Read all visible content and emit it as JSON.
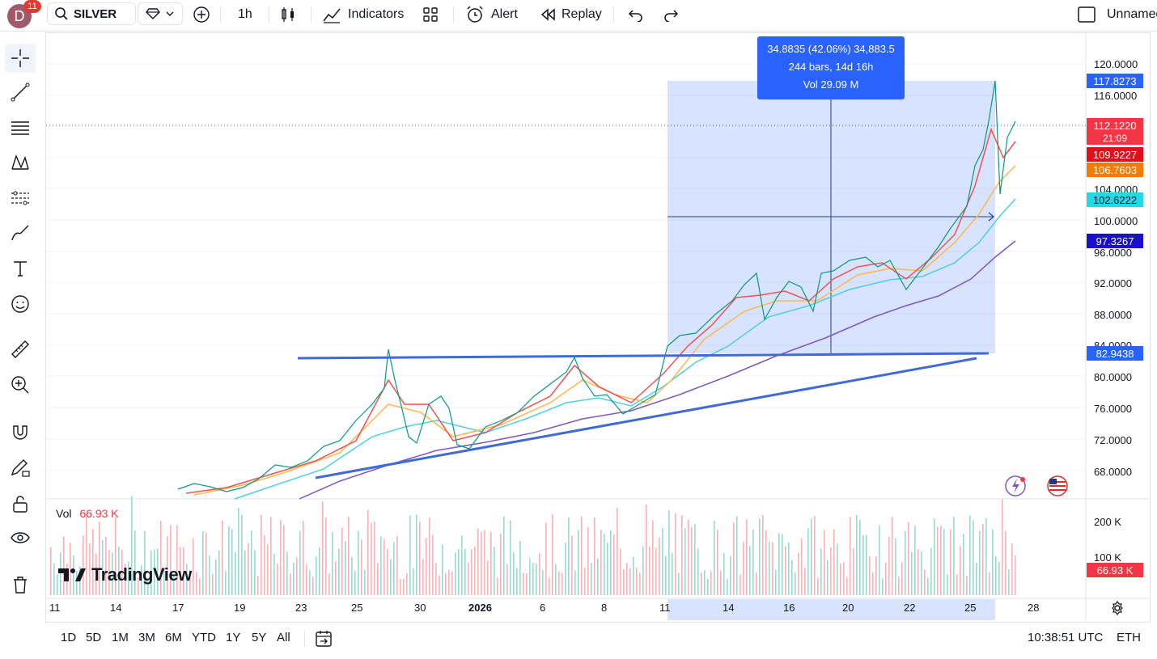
{
  "header": {
    "avatar_letter": "D",
    "notifications": "11",
    "symbol": "SILVER",
    "interval": "1h",
    "indicators_label": "Indicators",
    "alert_label": "Alert",
    "replay_label": "Replay",
    "layout_name": "Unnamed"
  },
  "chart": {
    "measure": {
      "line1": "34.8835 (42.06%) 34,883.5",
      "line2": "244 bars, 14d 16h",
      "line3": "Vol 29.09 M"
    },
    "price_axis": [
      "120.0000",
      "116.0000",
      "104.0000",
      "100.0000",
      "96.0000",
      "92.0000",
      "88.0000",
      "84.0000",
      "80.0000",
      "76.0000",
      "72.0000",
      "68.0000"
    ],
    "price_labels": [
      {
        "text": "117.8273",
        "color": "#2962ff"
      },
      {
        "text": "112.1220",
        "color": "#f23645"
      },
      {
        "text": "21:09",
        "color": "#f23645"
      },
      {
        "text": "109.9227",
        "color": "#e0101a"
      },
      {
        "text": "106.7603",
        "color": "#f57c00"
      },
      {
        "text": "102.6222",
        "color": "#26d7e8"
      },
      {
        "text": "97.3267",
        "color": "#1a10cc"
      },
      {
        "text": "82.9438",
        "color": "#2962ff"
      }
    ],
    "volume": {
      "label": "Vol",
      "value": "66.93 K",
      "axis": [
        "200 K",
        "100 K"
      ],
      "badge": "66.93 K"
    },
    "brand": "TradingView",
    "dates": [
      "11",
      "14",
      "17",
      "19",
      "23",
      "25",
      "30",
      "2026",
      "6",
      "8",
      "11",
      "14",
      "16",
      "20",
      "22",
      "25",
      "28"
    ]
  },
  "bottom": {
    "ranges": [
      "1D",
      "5D",
      "1M",
      "3M",
      "6M",
      "YTD",
      "1Y",
      "5Y",
      "All"
    ],
    "time": "10:38:51 UTC",
    "session": "ETH"
  }
}
